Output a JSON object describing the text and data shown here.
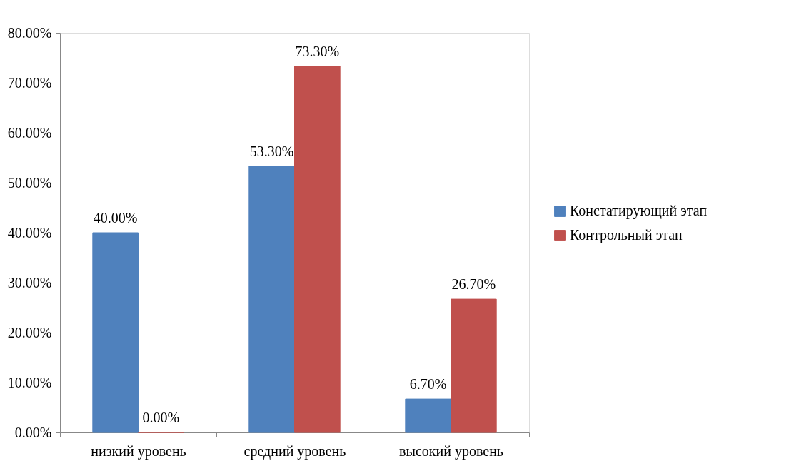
{
  "chart_data": {
    "type": "bar",
    "categories": [
      "низкий уровень",
      "средний уровень",
      "высокий уровень"
    ],
    "series": [
      {
        "name": "Констатирующий этап",
        "color": "#4f81bd",
        "values": [
          40.0,
          53.3,
          6.7
        ],
        "value_labels": [
          "40.00%",
          "53.30%",
          "6.70%"
        ]
      },
      {
        "name": "Контрольный этап",
        "color": "#c0504d",
        "values": [
          0.0,
          73.3,
          26.7
        ],
        "value_labels": [
          "0.00%",
          "73.30%",
          "26.70%"
        ]
      }
    ],
    "ylim": [
      0,
      80
    ],
    "yticks": [
      {
        "value": 0,
        "label": "0.00%"
      },
      {
        "value": 10,
        "label": "10.00%"
      },
      {
        "value": 20,
        "label": "20.00%"
      },
      {
        "value": 30,
        "label": "30.00%"
      },
      {
        "value": 40,
        "label": "40.00%"
      },
      {
        "value": 50,
        "label": "50.00%"
      },
      {
        "value": 60,
        "label": "60.00%"
      },
      {
        "value": 70,
        "label": "70.00%"
      },
      {
        "value": 80,
        "label": "80.00%"
      }
    ],
    "grid": false,
    "legend": "right"
  }
}
